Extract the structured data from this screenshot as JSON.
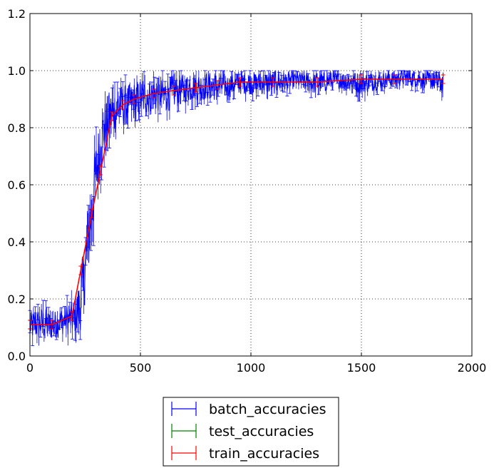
{
  "chart_data": {
    "type": "line",
    "title": "",
    "xlabel": "",
    "ylabel": "",
    "xlim": [
      0,
      2000
    ],
    "ylim": [
      0.0,
      1.2
    ],
    "xticks": [
      "0",
      "500",
      "1000",
      "1500",
      "2000"
    ],
    "yticks": [
      "0.0",
      "0.2",
      "0.4",
      "0.6",
      "0.8",
      "1.0",
      "1.2"
    ],
    "grid": true,
    "legend_position": "bottom-center-outside",
    "series": [
      {
        "name": "batch_accuracies",
        "color": "#0000ff",
        "error_bars": true,
        "x": [
          0,
          50,
          100,
          150,
          200,
          230,
          250,
          270,
          300,
          330,
          360,
          400,
          450,
          500,
          550,
          600,
          650,
          700,
          750,
          800,
          850,
          900,
          950,
          1000,
          1100,
          1200,
          1300,
          1400,
          1500,
          1600,
          1700,
          1800,
          1870
        ],
        "y": [
          0.11,
          0.12,
          0.11,
          0.13,
          0.14,
          0.2,
          0.33,
          0.46,
          0.66,
          0.79,
          0.85,
          0.88,
          0.89,
          0.91,
          0.92,
          0.92,
          0.93,
          0.94,
          0.95,
          0.95,
          0.95,
          0.95,
          0.96,
          0.96,
          0.96,
          0.97,
          0.96,
          0.97,
          0.96,
          0.97,
          0.98,
          0.97,
          0.96
        ],
        "spread": [
          0.05,
          0.06,
          0.05,
          0.05,
          0.06,
          0.1,
          0.12,
          0.13,
          0.12,
          0.1,
          0.09,
          0.08,
          0.07,
          0.07,
          0.06,
          0.06,
          0.06,
          0.05,
          0.05,
          0.05,
          0.05,
          0.04,
          0.04,
          0.04,
          0.04,
          0.03,
          0.04,
          0.03,
          0.04,
          0.03,
          0.03,
          0.03,
          0.04
        ]
      },
      {
        "name": "test_accuracies",
        "color": "#008000",
        "error_bars": true,
        "x": [],
        "y": []
      },
      {
        "name": "train_accuracies",
        "color": "#ff0000",
        "error_bars": true,
        "x": [
          0,
          100,
          190,
          230,
          280,
          320,
          370,
          420,
          470,
          560,
          650,
          750,
          850,
          950,
          1100,
          1300,
          1500,
          1650,
          1870
        ],
        "y": [
          0.11,
          0.11,
          0.14,
          0.3,
          0.5,
          0.65,
          0.84,
          0.88,
          0.9,
          0.92,
          0.93,
          0.94,
          0.95,
          0.96,
          0.96,
          0.96,
          0.97,
          0.97,
          0.97
        ]
      }
    ]
  }
}
